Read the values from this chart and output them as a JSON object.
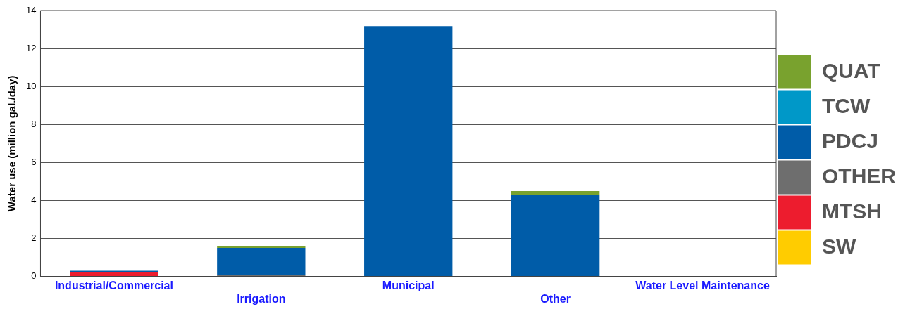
{
  "chart_data": {
    "type": "bar",
    "stacked": true,
    "ylabel": "Water use (million gal./day)",
    "categories": [
      "Industrial/Commercial",
      "Irrigation",
      "Municipal",
      "Other",
      "Water Level Maintenance"
    ],
    "ylim": [
      0,
      14
    ],
    "yticks": [
      0,
      2,
      4,
      6,
      8,
      10,
      12,
      14
    ],
    "grid": "y",
    "legend": "right",
    "series": [
      {
        "name": "SW",
        "color": "#ffcc00",
        "values": [
          0,
          0,
          0,
          0,
          0
        ]
      },
      {
        "name": "MTSH",
        "color": "#ed1c2e",
        "values": [
          0.22,
          0,
          0,
          0,
          0
        ]
      },
      {
        "name": "OTHER",
        "color": "#6e6e6e",
        "values": [
          0,
          0.08,
          0,
          null,
          0
        ]
      },
      {
        "name": "PDCJ",
        "color": "#005ca8",
        "values": [
          0.08,
          1.42,
          13.18,
          4.3,
          0
        ]
      },
      {
        "name": "TCW",
        "color": "#0098c8",
        "values": [
          0,
          0,
          0,
          0,
          0
        ]
      },
      {
        "name": "QUAT",
        "color": "#79a22e",
        "values": [
          0,
          0.08,
          0,
          0.2,
          0
        ]
      }
    ]
  }
}
